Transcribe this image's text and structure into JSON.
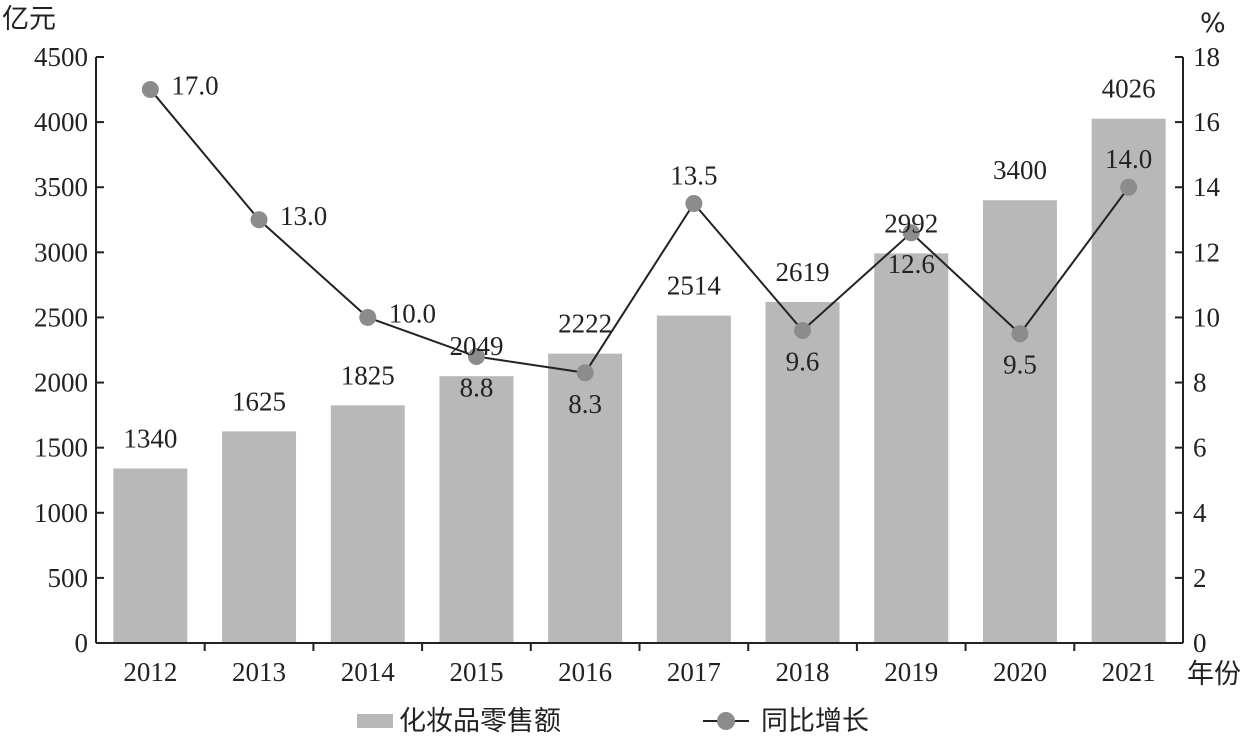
{
  "chart_data": {
    "type": "bar",
    "categories": [
      "2012",
      "2013",
      "2014",
      "2015",
      "2016",
      "2017",
      "2018",
      "2019",
      "2020",
      "2021"
    ],
    "series": [
      {
        "name": "化妆品零售额",
        "type": "bar",
        "axis": "left",
        "values": [
          1340,
          1625,
          1825,
          2049,
          2222,
          2514,
          2619,
          2992,
          3400,
          4026
        ],
        "labels": [
          "1340",
          "1625",
          "1825",
          "2049",
          "2222",
          "2514",
          "2619",
          "2992",
          "3400",
          "4026"
        ],
        "color": "#b8b8b8"
      },
      {
        "name": "同比增长",
        "type": "line",
        "axis": "right",
        "values": [
          17.0,
          13.0,
          10.0,
          8.8,
          8.3,
          13.5,
          9.6,
          12.6,
          9.5,
          14.0
        ],
        "labels": [
          "17.0",
          "13.0",
          "10.0",
          "8.8",
          "8.3",
          "13.5",
          "9.6",
          "12.6",
          "9.5",
          "14.0"
        ],
        "color": "#222222",
        "marker_color": "#8c8c8c"
      }
    ],
    "y_left": {
      "unit": "亿元",
      "ylim": [
        0,
        4500
      ],
      "ticks": [
        "0",
        "500",
        "1000",
        "1500",
        "2000",
        "2500",
        "3000",
        "3500",
        "4000",
        "4500"
      ]
    },
    "y_right": {
      "unit": "%",
      "ylim": [
        0,
        18
      ],
      "ticks": [
        "0",
        "2",
        "4",
        "6",
        "8",
        "10",
        "12",
        "14",
        "16",
        "18"
      ]
    },
    "x_unit": "年份",
    "legend_position": "bottom",
    "grid": false
  }
}
